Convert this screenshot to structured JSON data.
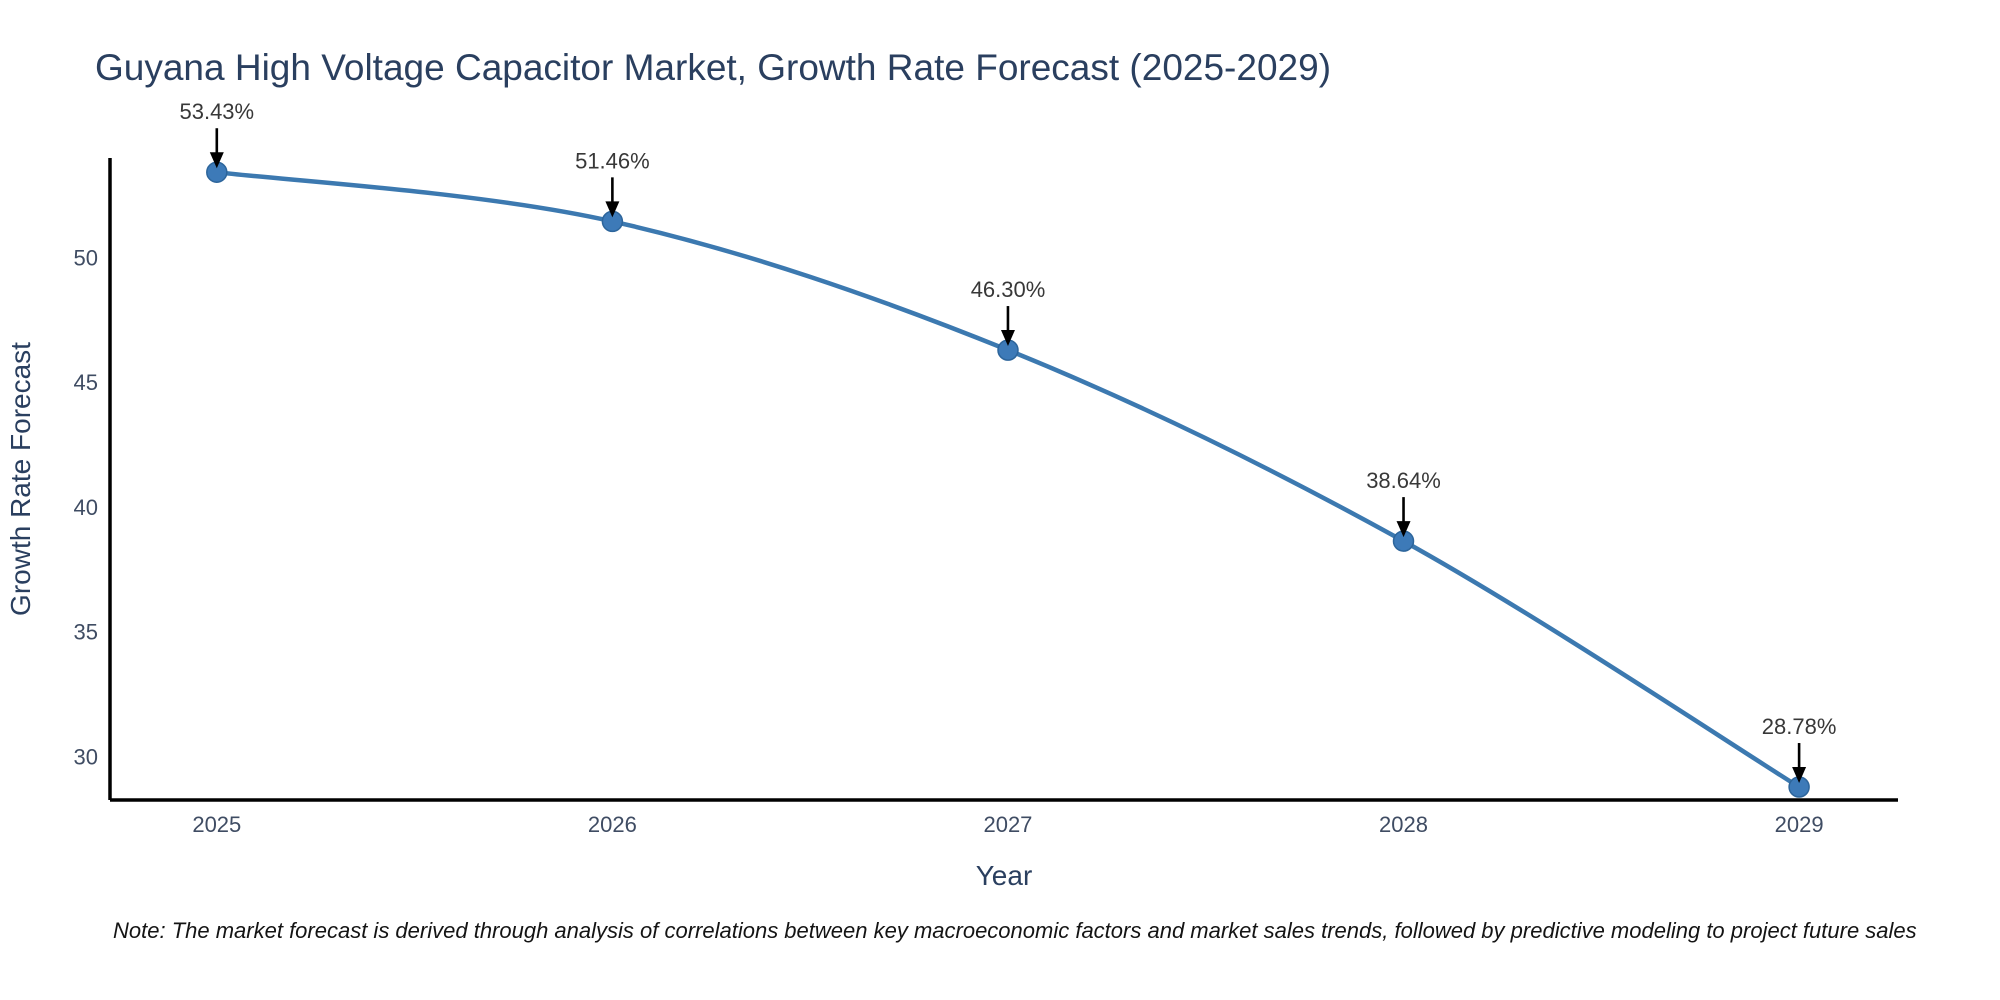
{
  "chart": {
    "colors": {
      "line": "#3c79b0",
      "marker_fill": "#3d7ab8",
      "marker_edge": "#2d659b",
      "arrow": "#000000",
      "axis": "#000000",
      "title_text": "#2a3f5f",
      "tick_text": "#3f4c63",
      "annotation_text": "#383838",
      "background": "#ffffff"
    }
  },
  "chart_data": {
    "type": "line",
    "title": "Guyana High Voltage Capacitor Market, Growth Rate Forecast (2025-2029)",
    "xlabel": "Year",
    "ylabel": "Growth Rate Forecast",
    "x": [
      2025,
      2026,
      2027,
      2028,
      2029
    ],
    "values": [
      53.43,
      51.46,
      46.3,
      38.64,
      28.78
    ],
    "point_labels": [
      "53.43%",
      "51.46%",
      "46.30%",
      "38.64%",
      "28.78%"
    ],
    "xticks": [
      "2025",
      "2026",
      "2027",
      "2028",
      "2029"
    ],
    "yticks": [
      30,
      35,
      40,
      45,
      50
    ],
    "xlim": [
      2024.73,
      2029.25
    ],
    "ylim": [
      28.26,
      54.0
    ],
    "line_shape": "spline",
    "grid": false,
    "legend": false,
    "note": "Note: The market forecast is derived through analysis of correlations between key macroeconomic factors and market sales trends, followed by predictive modeling to project future sales"
  }
}
